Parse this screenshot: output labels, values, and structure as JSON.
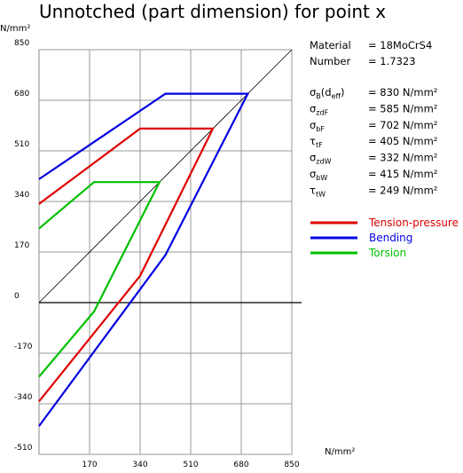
{
  "title": "Unnotched (part dimension) for point x",
  "chart_data": {
    "type": "line",
    "y_unit": "N/mm²",
    "x_unit": "N/mm²",
    "xlim": [
      0,
      850
    ],
    "ylim": [
      -510,
      850
    ],
    "x_ticks": [
      "170",
      "340",
      "510",
      "680",
      "850"
    ],
    "y_ticks": [
      "850",
      "680",
      "510",
      "340",
      "170",
      "0",
      "-170",
      "-340",
      "-510"
    ],
    "grid": true,
    "series": [
      {
        "name": "Tension-pressure",
        "color": "#e00000",
        "points": [
          [
            0,
            332
          ],
          [
            340,
            585
          ],
          [
            585,
            585
          ],
          [
            340,
            90
          ],
          [
            0,
            -332
          ]
        ]
      },
      {
        "name": "Bending",
        "color": "#0000e0",
        "points": [
          [
            0,
            415
          ],
          [
            425,
            702
          ],
          [
            702,
            702
          ],
          [
            425,
            160
          ],
          [
            0,
            -415
          ]
        ]
      },
      {
        "name": "Torsion",
        "color": "#00c000",
        "points": [
          [
            0,
            249
          ],
          [
            185,
            405
          ],
          [
            405,
            405
          ],
          [
            185,
            -30
          ],
          [
            0,
            -249
          ]
        ]
      },
      {
        "name": "",
        "color": "#000000",
        "points": [
          [
            0,
            0
          ],
          [
            850,
            850
          ]
        ]
      }
    ]
  },
  "info": {
    "material_label": "Material",
    "material_value": "= 18MoCrS4",
    "number_label": "Number",
    "number_value": "= 1.7323",
    "rows": [
      {
        "sym": "σ",
        "sub": "B",
        "tail": "(d",
        "tail_sub": "eff",
        "tail_end": ")",
        "value": "= 830  N/mm²"
      },
      {
        "sym": "σ",
        "sub": "zdF",
        "value": "= 585  N/mm²"
      },
      {
        "sym": "σ",
        "sub": "bF",
        "value": "= 702  N/mm²"
      },
      {
        "sym": "τ",
        "sub": "tF",
        "value": "= 405  N/mm²"
      },
      {
        "sym": "σ",
        "sub": "zdW",
        "value": "= 332  N/mm²"
      },
      {
        "sym": "σ",
        "sub": "bW",
        "value": "= 415  N/mm²"
      },
      {
        "sym": "τ",
        "sub": "tW",
        "value": "= 249  N/mm²"
      }
    ]
  },
  "legend": [
    {
      "label": "Tension-pressure",
      "color": "#e00000"
    },
    {
      "label": "Bending",
      "color": "#0000e0"
    },
    {
      "label": "Torsion",
      "color": "#00c000"
    }
  ]
}
